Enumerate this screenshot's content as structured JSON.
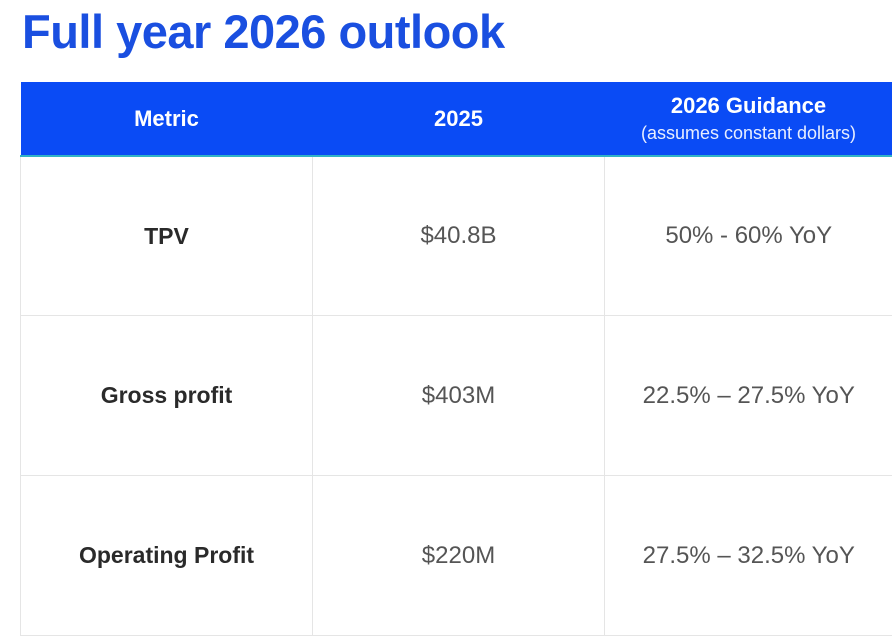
{
  "title": "Full year 2026 outlook",
  "table": {
    "headers": {
      "metric": "Metric",
      "year": "2025",
      "guidance": "2026 Guidance",
      "guidance_note": "(assumes constant dollars)"
    },
    "rows": [
      {
        "metric": "TPV",
        "value_2025": "$40.8B",
        "guidance": "50% - 60% YoY"
      },
      {
        "metric": "Gross profit",
        "value_2025": "$403M",
        "guidance": "22.5% – 27.5% YoY"
      },
      {
        "metric": "Operating Profit",
        "value_2025": "$220M",
        "guidance": "27.5% – 32.5% YoY"
      }
    ]
  },
  "colors": {
    "title": "#1a4fe0",
    "header_bg": "#0a4bf5",
    "header_accent": "#31b3c6"
  }
}
